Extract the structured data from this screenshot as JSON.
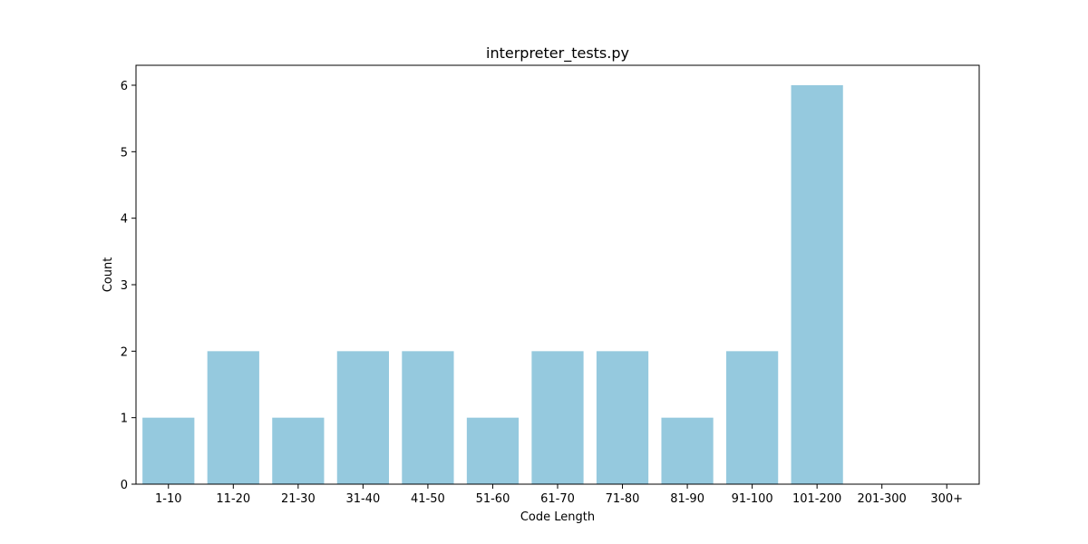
{
  "chart_data": {
    "type": "bar",
    "title": "interpreter_tests.py",
    "xlabel": "Code Length",
    "ylabel": "Count",
    "categories": [
      "1-10",
      "11-20",
      "21-30",
      "31-40",
      "41-50",
      "51-60",
      "61-70",
      "71-80",
      "81-90",
      "91-100",
      "101-200",
      "201-300",
      "300+"
    ],
    "values": [
      1,
      2,
      1,
      2,
      2,
      1,
      2,
      2,
      1,
      2,
      6,
      0,
      0
    ],
    "ylim": [
      0,
      6.3
    ],
    "yticks": [
      0,
      1,
      2,
      3,
      4,
      5,
      6
    ],
    "grid": false,
    "legend": "none",
    "bar_color": "#95c9de"
  }
}
